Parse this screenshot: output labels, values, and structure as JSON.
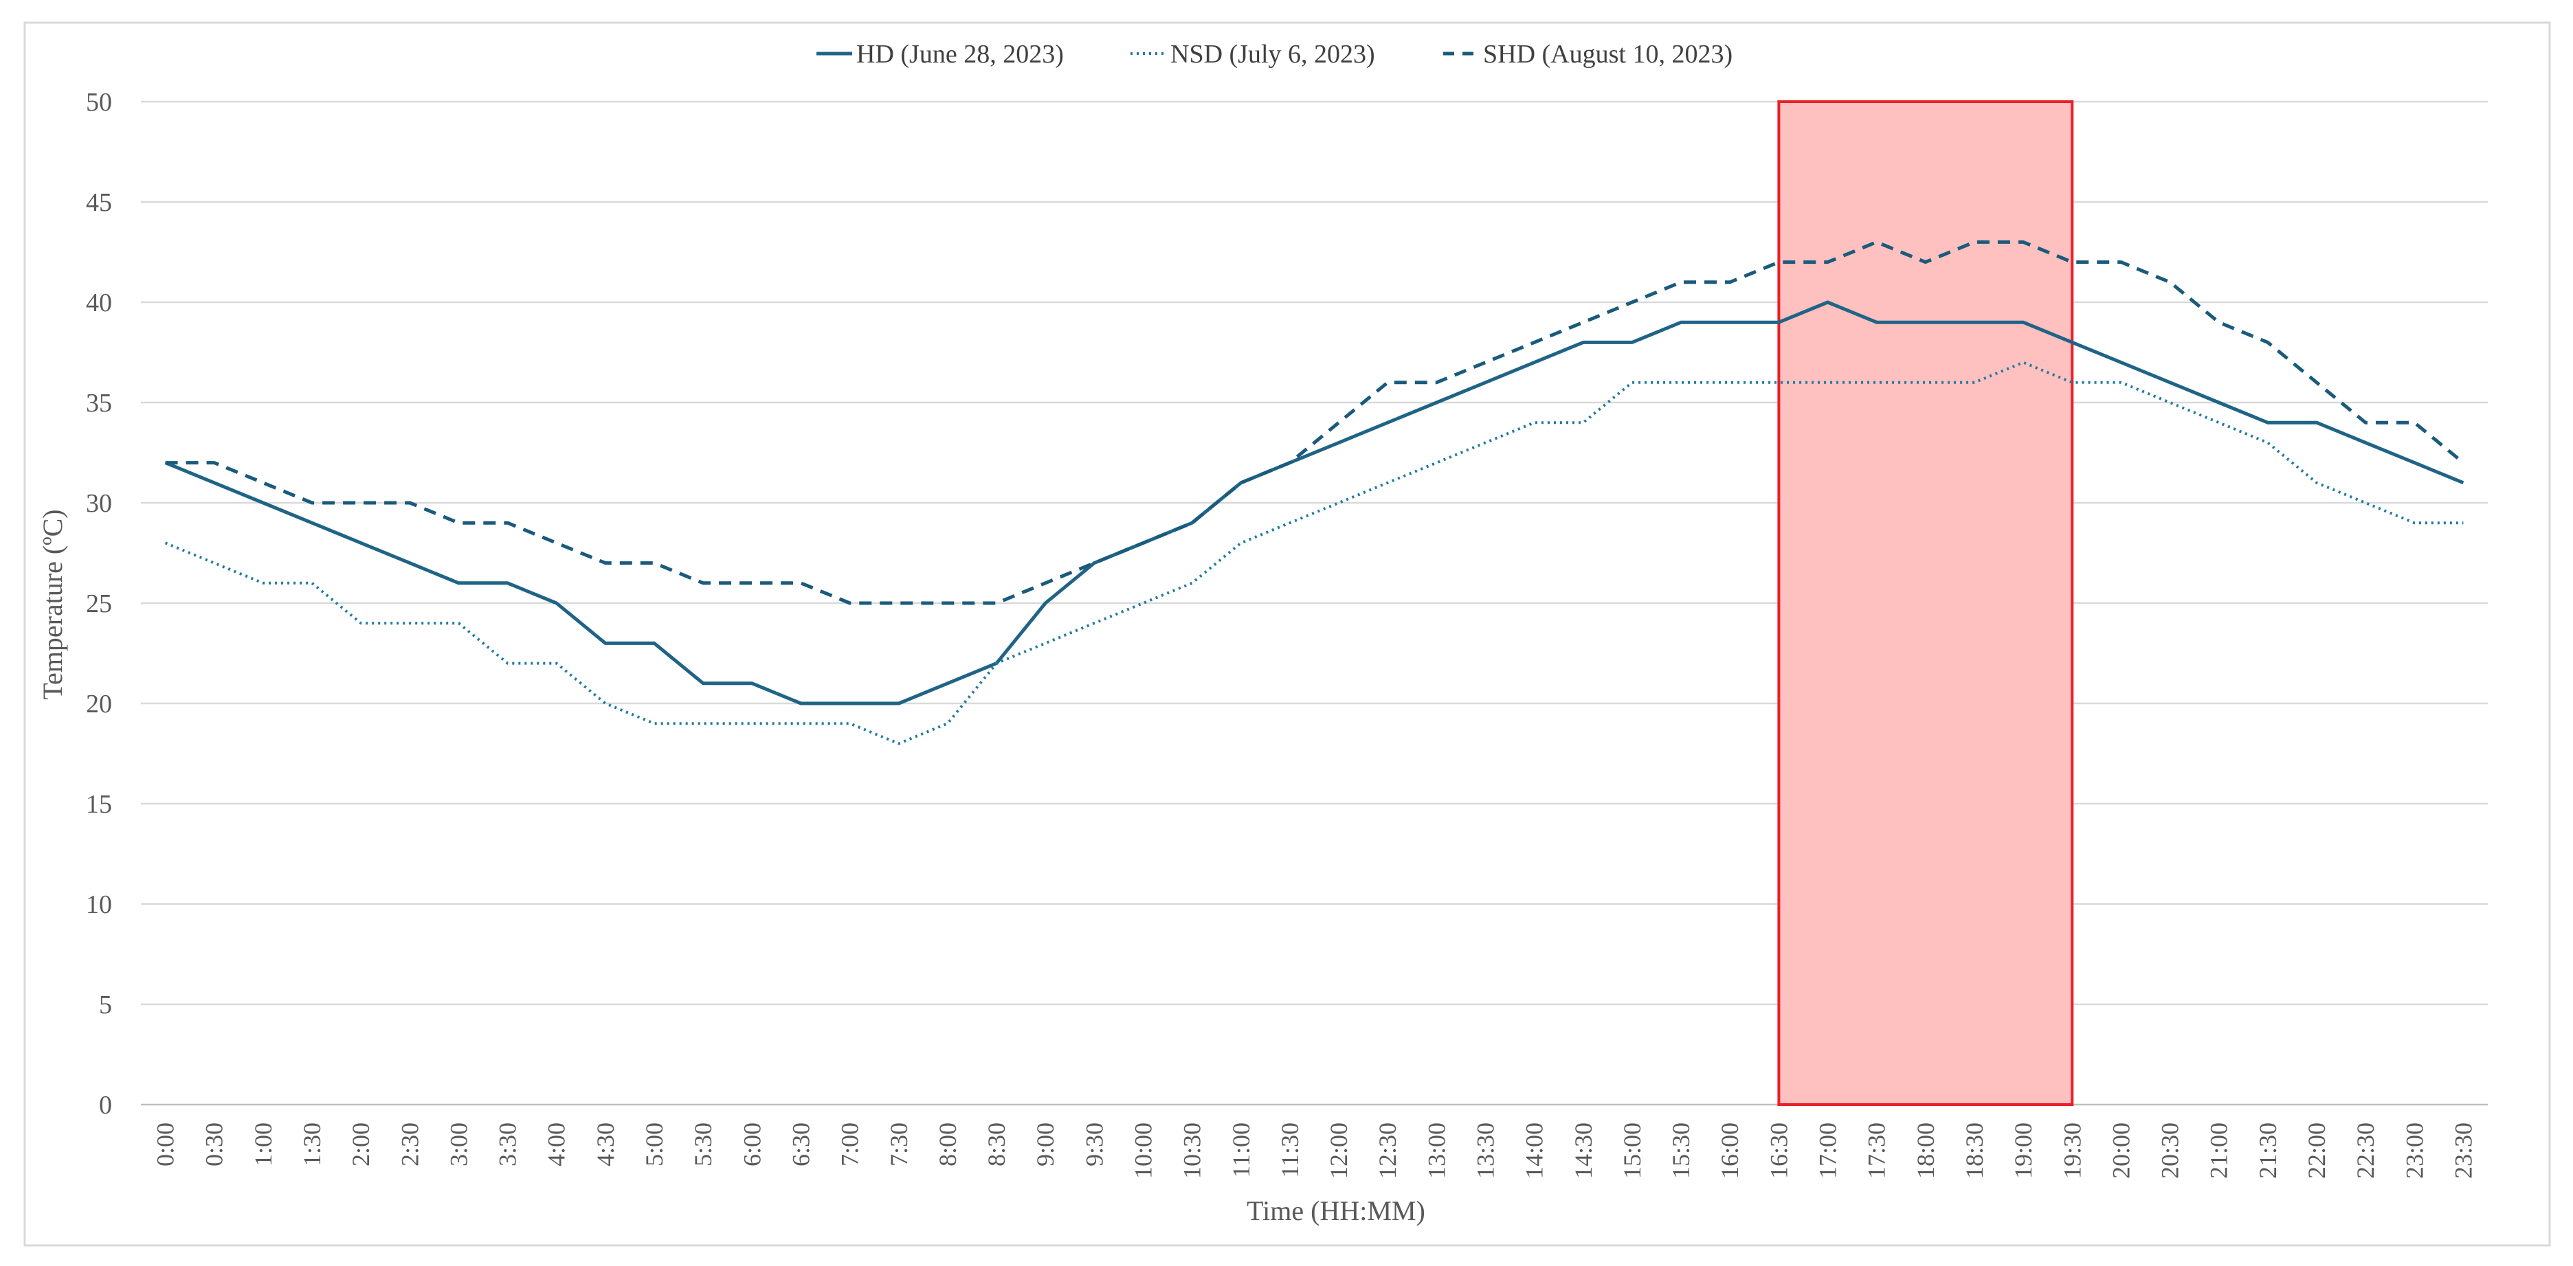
{
  "chart_data": {
    "type": "line",
    "xlabel": "Time (HH:MM)",
    "ylabel": "Temperature (ºC)",
    "ylim": [
      0,
      50
    ],
    "yticks": [
      0,
      5,
      10,
      15,
      20,
      25,
      30,
      35,
      40,
      45,
      50
    ],
    "legend_position": "top-center",
    "grid": "horizontal",
    "categories": [
      "0:00",
      "0:30",
      "1:00",
      "1:30",
      "2:00",
      "2:30",
      "3:00",
      "3:30",
      "4:00",
      "4:30",
      "5:00",
      "5:30",
      "6:00",
      "6:30",
      "7:00",
      "7:30",
      "8:00",
      "8:30",
      "9:00",
      "9:30",
      "10:00",
      "10:30",
      "11:00",
      "11:30",
      "12:00",
      "12:30",
      "13:00",
      "13:30",
      "14:00",
      "14:30",
      "15:00",
      "15:30",
      "16:00",
      "16:30",
      "17:00",
      "17:30",
      "18:00",
      "18:30",
      "19:00",
      "19:30",
      "20:00",
      "20:30",
      "21:00",
      "21:30",
      "22:00",
      "22:30",
      "23:00",
      "23:30"
    ],
    "series": [
      {
        "name": "HD (June 28, 2023)",
        "style": "solid",
        "color": "#1F6487",
        "values": [
          32,
          31,
          30,
          29,
          28,
          27,
          26,
          26,
          25,
          23,
          23,
          21,
          21,
          20,
          20,
          20,
          21,
          22,
          25,
          27,
          28,
          29,
          31,
          32,
          33,
          34,
          35,
          36,
          37,
          38,
          38,
          39,
          39,
          39,
          40,
          39,
          39,
          39,
          39,
          38,
          37,
          36,
          35,
          34,
          34,
          33,
          32,
          31
        ]
      },
      {
        "name": "NSD (July 6, 2023)",
        "style": "dotted",
        "color": "#1F7A9E",
        "values": [
          28,
          27,
          26,
          26,
          24,
          24,
          24,
          22,
          22,
          20,
          19,
          19,
          19,
          19,
          19,
          18,
          19,
          22,
          23,
          24,
          25,
          26,
          28,
          29,
          30,
          31,
          32,
          33,
          34,
          34,
          36,
          36,
          36,
          36,
          36,
          36,
          36,
          36,
          37,
          36,
          36,
          35,
          34,
          33,
          31,
          30,
          29,
          29
        ]
      },
      {
        "name": "SHD (August 10, 2023)",
        "style": "dashed",
        "color": "#1A5A7C",
        "values": [
          32,
          32,
          31,
          30,
          30,
          30,
          29,
          29,
          28,
          27,
          27,
          26,
          26,
          26,
          25,
          25,
          25,
          25,
          26,
          27,
          28,
          29,
          31,
          32,
          34,
          36,
          36,
          37,
          38,
          39,
          40,
          41,
          41,
          42,
          42,
          43,
          42,
          43,
          43,
          42,
          42,
          41,
          39,
          38,
          36,
          34,
          34,
          32
        ]
      }
    ],
    "highlight": {
      "from": "16:30",
      "to": "19:30",
      "y_range": [
        0,
        50
      ],
      "fill_color": "#FFC0C0",
      "stroke_color": "#E8202A"
    }
  }
}
